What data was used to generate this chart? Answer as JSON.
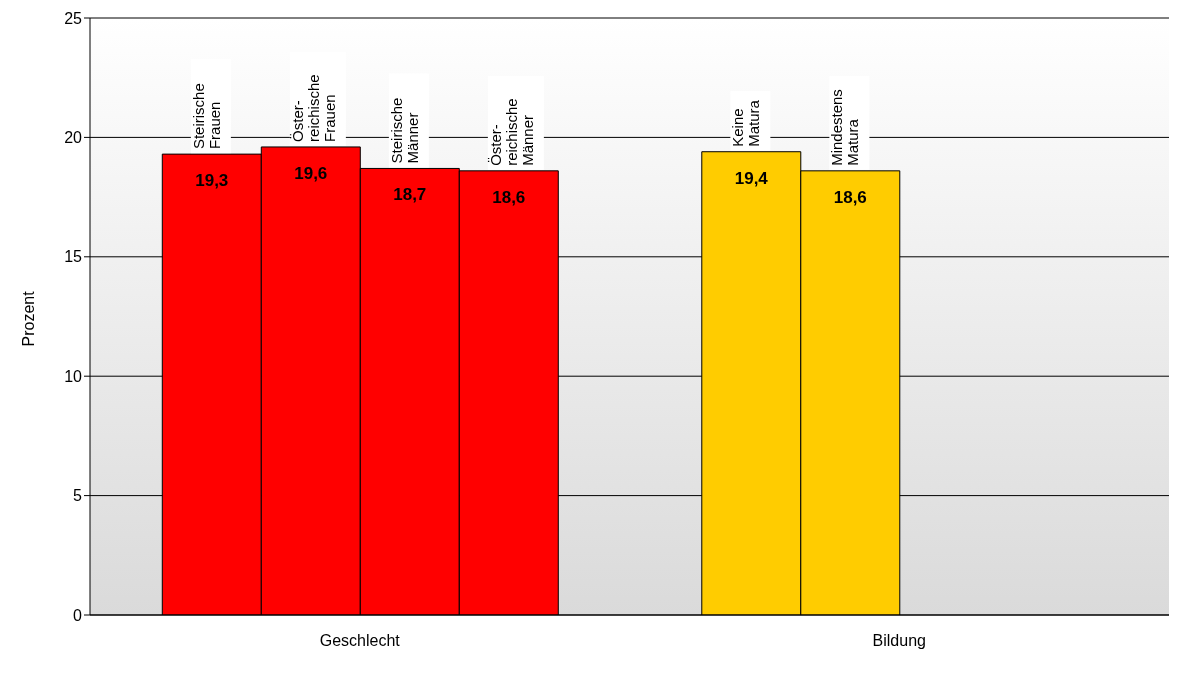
{
  "chart_data": {
    "type": "bar",
    "ylabel": "Prozent",
    "categories": [
      "Geschlecht",
      "Bildung"
    ],
    "series": [
      {
        "colors": [
          "#ff0000",
          "#ffcc00"
        ],
        "values": [
          19.3,
          19.4
        ],
        "value_labels": [
          "19,3",
          "19,4"
        ]
      },
      {
        "colors": [
          "#ff0000",
          "#ffcc00"
        ],
        "values": [
          19.6,
          18.6
        ],
        "value_labels": [
          "19,6",
          "18,6"
        ]
      },
      {
        "colors": [
          "#ff0000",
          "#ffcc00"
        ],
        "values": [
          18.7,
          null
        ],
        "value_labels": [
          "18,7",
          null
        ]
      },
      {
        "colors": [
          "#ff0000",
          "#ffcc00"
        ],
        "values": [
          18.6,
          null
        ],
        "value_labels": [
          "18,6",
          null
        ]
      }
    ],
    "annotations": [
      "Steirische\nFrauen",
      "Öster-\nreichische\nFrauen",
      "Steirische\nMänner",
      "Öster-\nreichische\nMänner",
      "Keine\nMatura",
      "Mindestens\nMatura"
    ],
    "ylim": [
      0,
      25
    ],
    "yticks": [
      0,
      5,
      10,
      15,
      20,
      25
    ],
    "grid": "y",
    "legend": false
  }
}
